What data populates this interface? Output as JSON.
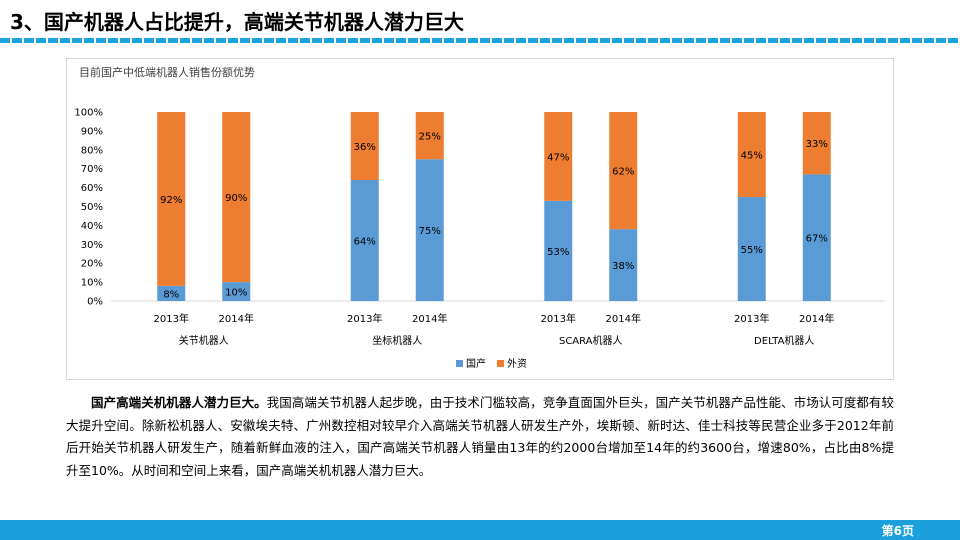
{
  "header": {
    "title": "3、国产机器人占比提升，高端关节机器人潜力巨大"
  },
  "chart_data": {
    "type": "bar",
    "stacked": true,
    "title": "目前国产中低端机器人销售份额优势",
    "groups": [
      {
        "name": "关节机器人",
        "categories": [
          "2013年",
          "2014年"
        ],
        "domestic": [
          8,
          10
        ],
        "foreign": [
          92,
          90
        ]
      },
      {
        "name": "坐标机器人",
        "categories": [
          "2013年",
          "2014年"
        ],
        "domestic": [
          64,
          75
        ],
        "foreign": [
          36,
          25
        ]
      },
      {
        "name": "SCARA机器人",
        "categories": [
          "2013年",
          "2014年"
        ],
        "domestic": [
          53,
          38
        ],
        "foreign": [
          47,
          62
        ]
      },
      {
        "name": "DELTA机器人",
        "categories": [
          "2013年",
          "2014年"
        ],
        "domestic": [
          55,
          67
        ],
        "foreign": [
          45,
          33
        ]
      }
    ],
    "series": [
      {
        "name": "国产",
        "color": "#5b9bd5"
      },
      {
        "name": "外资",
        "color": "#ed7d31"
      }
    ],
    "y_ticks": [
      "0%",
      "10%",
      "20%",
      "30%",
      "40%",
      "50%",
      "60%",
      "70%",
      "80%",
      "90%",
      "100%"
    ],
    "ylim": [
      0,
      100
    ],
    "legend_position": "bottom"
  },
  "paragraph": {
    "lead": "国产高端关机机器人潜力巨大。",
    "body": "我国高端关节机器人起步晚，由于技术门槛较高，竞争直面国外巨头，国产关节机器产品性能、市场认可度都有较大提升空间。除新松机器人、安徽埃夫特、广州数控相对较早介入高端关节机器人研发生产外，埃斯顿、新时达、佳士科技等民营企业多于2012年前后开始关节机器人研发生产，随着新鲜血液的注入，国产高端关节机器人销量由13年的约2000台增加至14年的约3600台，增速80%，占比由8%提升至10%。从时间和空间上来看，国产高端关机机器人潜力巨大。"
  },
  "footer": {
    "page": "第6页"
  }
}
